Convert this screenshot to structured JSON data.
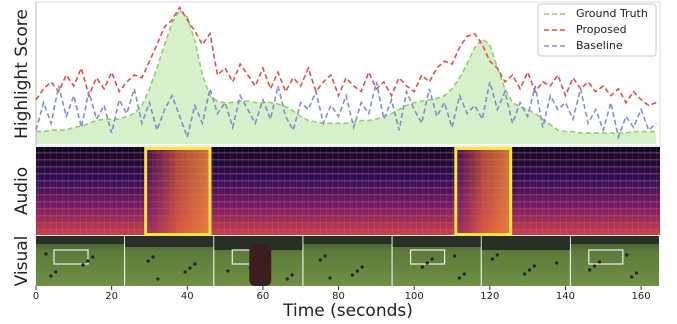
{
  "panels": [
    "Highlight Score",
    "Audio",
    "Visual"
  ],
  "chart_data": {
    "type": "line",
    "x_label": "Time (seconds)",
    "x": [
      0,
      2,
      4,
      6,
      8,
      10,
      12,
      14,
      16,
      18,
      20,
      22,
      24,
      26,
      28,
      30,
      32,
      34,
      36,
      38,
      40,
      42,
      44,
      46,
      48,
      50,
      52,
      54,
      56,
      58,
      60,
      62,
      64,
      66,
      68,
      70,
      72,
      74,
      76,
      78,
      80,
      82,
      84,
      86,
      88,
      90,
      92,
      94,
      96,
      98,
      100,
      102,
      104,
      106,
      108,
      110,
      112,
      114,
      116,
      118,
      120,
      122,
      124,
      126,
      128,
      130,
      132,
      134,
      136,
      138,
      140,
      142,
      144,
      146,
      148,
      150,
      152,
      154,
      156,
      158,
      160,
      162,
      164
    ],
    "xlim": [
      0,
      165
    ],
    "xticks": [
      0,
      20,
      40,
      60,
      80,
      100,
      120,
      140,
      160
    ],
    "ylim": [
      0,
      1
    ],
    "legend": "upper right",
    "series": [
      {
        "name": "Ground Truth",
        "color": "#8fd16a",
        "fill": true,
        "values": [
          0.09,
          0.09,
          0.1,
          0.1,
          0.1,
          0.12,
          0.13,
          0.15,
          0.17,
          0.18,
          0.18,
          0.18,
          0.2,
          0.22,
          0.28,
          0.4,
          0.55,
          0.72,
          0.88,
          0.97,
          0.92,
          0.75,
          0.5,
          0.35,
          0.31,
          0.3,
          0.3,
          0.31,
          0.31,
          0.3,
          0.3,
          0.3,
          0.29,
          0.27,
          0.24,
          0.2,
          0.17,
          0.16,
          0.15,
          0.15,
          0.15,
          0.15,
          0.16,
          0.17,
          0.17,
          0.18,
          0.2,
          0.22,
          0.25,
          0.28,
          0.3,
          0.31,
          0.32,
          0.33,
          0.35,
          0.4,
          0.48,
          0.58,
          0.7,
          0.76,
          0.72,
          0.55,
          0.4,
          0.3,
          0.27,
          0.25,
          0.22,
          0.18,
          0.14,
          0.1,
          0.09,
          0.09,
          0.08,
          0.08,
          0.08,
          0.08,
          0.08,
          0.08,
          0.08,
          0.09,
          0.09,
          0.09,
          0.09
        ]
      },
      {
        "name": "Proposed",
        "color": "#d9534f",
        "fill": false,
        "values": [
          0.32,
          0.4,
          0.45,
          0.38,
          0.5,
          0.42,
          0.55,
          0.35,
          0.48,
          0.4,
          0.52,
          0.38,
          0.45,
          0.5,
          0.48,
          0.6,
          0.72,
          0.85,
          0.9,
          0.99,
          0.9,
          0.82,
          0.72,
          0.8,
          0.5,
          0.55,
          0.45,
          0.58,
          0.5,
          0.42,
          0.55,
          0.4,
          0.52,
          0.38,
          0.48,
          0.42,
          0.55,
          0.38,
          0.45,
          0.5,
          0.35,
          0.48,
          0.42,
          0.38,
          0.52,
          0.4,
          0.45,
          0.35,
          0.48,
          0.42,
          0.38,
          0.5,
          0.45,
          0.55,
          0.6,
          0.58,
          0.7,
          0.78,
          0.8,
          0.72,
          0.6,
          0.55,
          0.45,
          0.5,
          0.4,
          0.52,
          0.38,
          0.45,
          0.42,
          0.5,
          0.35,
          0.48,
          0.4,
          0.45,
          0.38,
          0.42,
          0.35,
          0.4,
          0.3,
          0.38,
          0.32,
          0.28,
          0.3
        ]
      },
      {
        "name": "Baseline",
        "color": "#7f8fcf",
        "fill": false,
        "values": [
          0.1,
          0.3,
          0.15,
          0.42,
          0.2,
          0.35,
          0.12,
          0.38,
          0.18,
          0.28,
          0.08,
          0.32,
          0.22,
          0.4,
          0.15,
          0.3,
          0.1,
          0.25,
          0.35,
          0.2,
          0.05,
          0.28,
          0.15,
          0.4,
          0.22,
          0.3,
          0.12,
          0.35,
          0.25,
          0.15,
          0.32,
          0.18,
          0.42,
          0.2,
          0.1,
          0.3,
          0.25,
          0.38,
          0.15,
          0.28,
          0.2,
          0.35,
          0.12,
          0.3,
          0.22,
          0.45,
          0.18,
          0.32,
          0.1,
          0.38,
          0.25,
          0.15,
          0.4,
          0.2,
          0.3,
          0.12,
          0.35,
          0.22,
          0.28,
          0.18,
          0.45,
          0.25,
          0.38,
          0.15,
          0.3,
          0.2,
          0.42,
          0.12,
          0.35,
          0.25,
          0.3,
          0.18,
          0.4,
          0.15,
          0.25,
          0.1,
          0.3,
          0.05,
          0.2,
          0.12,
          0.25,
          0.1,
          0.15
        ]
      }
    ],
    "highlight_regions": [
      [
        29,
        46
      ],
      [
        111,
        125.5
      ]
    ],
    "highlight_color": "#f5e642"
  }
}
